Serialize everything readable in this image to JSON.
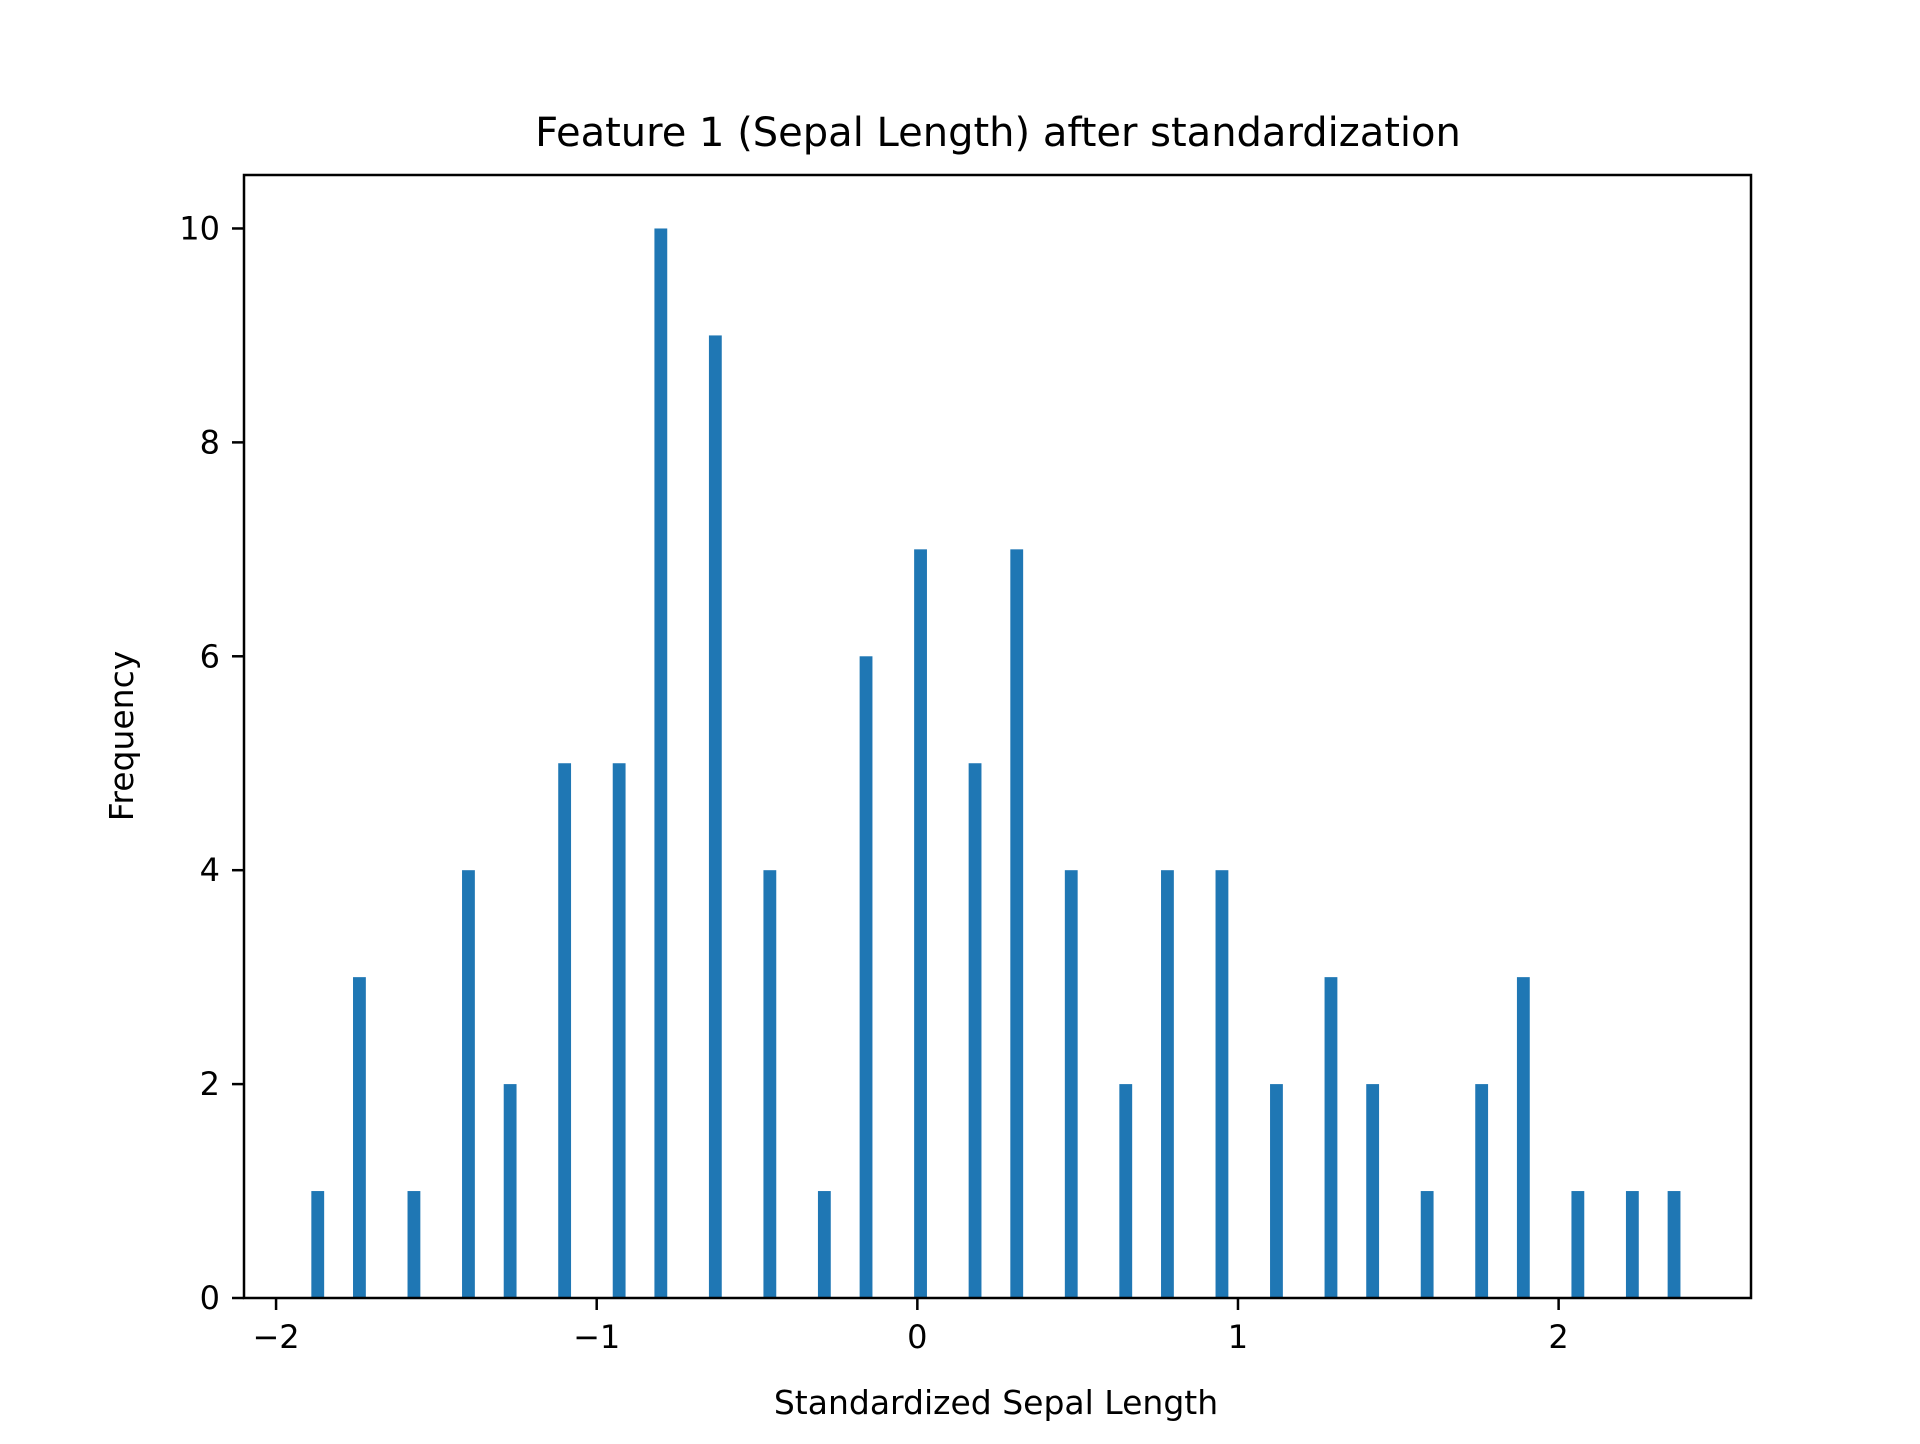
{
  "chart_data": {
    "type": "bar",
    "title": "Feature 1 (Sepal Length) after standardization",
    "xlabel": "Standardized Sepal Length",
    "ylabel": "Frequency",
    "xlim": [
      -2.1,
      2.6
    ],
    "ylim": [
      0,
      10.5
    ],
    "xticks": [
      -2,
      -1,
      0,
      1,
      2
    ],
    "xtick_labels": [
      "−2",
      "−1",
      "0",
      "1",
      "2"
    ],
    "yticks": [
      0,
      2,
      4,
      6,
      8,
      10
    ],
    "ytick_labels": [
      "0",
      "2",
      "4",
      "6",
      "8",
      "10"
    ],
    "bar_width": 0.04,
    "grid": false,
    "bar_color": "#1f77b4",
    "x": [
      -1.87,
      -1.74,
      -1.57,
      -1.4,
      -1.27,
      -1.1,
      -0.93,
      -0.8,
      -0.63,
      -0.46,
      -0.29,
      -0.16,
      0.01,
      0.18,
      0.31,
      0.48,
      0.65,
      0.78,
      0.95,
      1.12,
      1.29,
      1.42,
      1.59,
      1.76,
      1.89,
      2.06,
      2.23,
      2.36
    ],
    "values": [
      1,
      3,
      1,
      4,
      2,
      5,
      5,
      10,
      9,
      4,
      1,
      6,
      7,
      5,
      7,
      4,
      2,
      4,
      4,
      2,
      3,
      2,
      1,
      2,
      3,
      1,
      1,
      1
    ]
  }
}
